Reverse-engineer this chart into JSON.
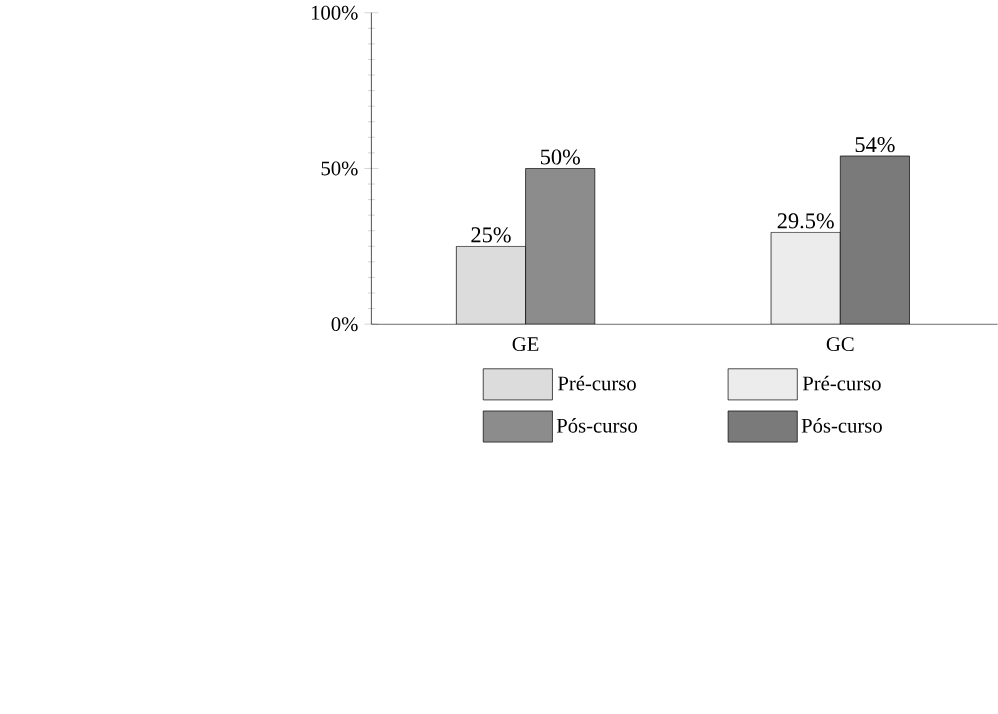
{
  "chart_data": {
    "type": "bar",
    "categories": [
      "GE",
      "GC"
    ],
    "series": [
      {
        "name": "Pré-curso",
        "color": "#dcdcdc",
        "values": [
          25,
          null
        ],
        "value_labels": [
          "25%",
          null
        ]
      },
      {
        "name": "Pós-curso",
        "color": "#8c8c8c",
        "values": [
          50,
          null
        ],
        "value_labels": [
          "50%",
          null
        ]
      },
      {
        "name": "Pré-curso",
        "color": "#ececec",
        "values": [
          null,
          29.5
        ],
        "value_labels": [
          null,
          "29.5%"
        ]
      },
      {
        "name": "Pós-curso",
        "color": "#7a7a7a",
        "values": [
          null,
          54
        ],
        "value_labels": [
          null,
          "54%"
        ]
      }
    ],
    "ylim": [
      0,
      100
    ],
    "yticks": [
      {
        "value": 0,
        "label": "0%"
      },
      {
        "value": 50,
        "label": "50%"
      },
      {
        "value": 100,
        "label": "100%"
      }
    ],
    "legend": "bottom",
    "grid": false
  }
}
